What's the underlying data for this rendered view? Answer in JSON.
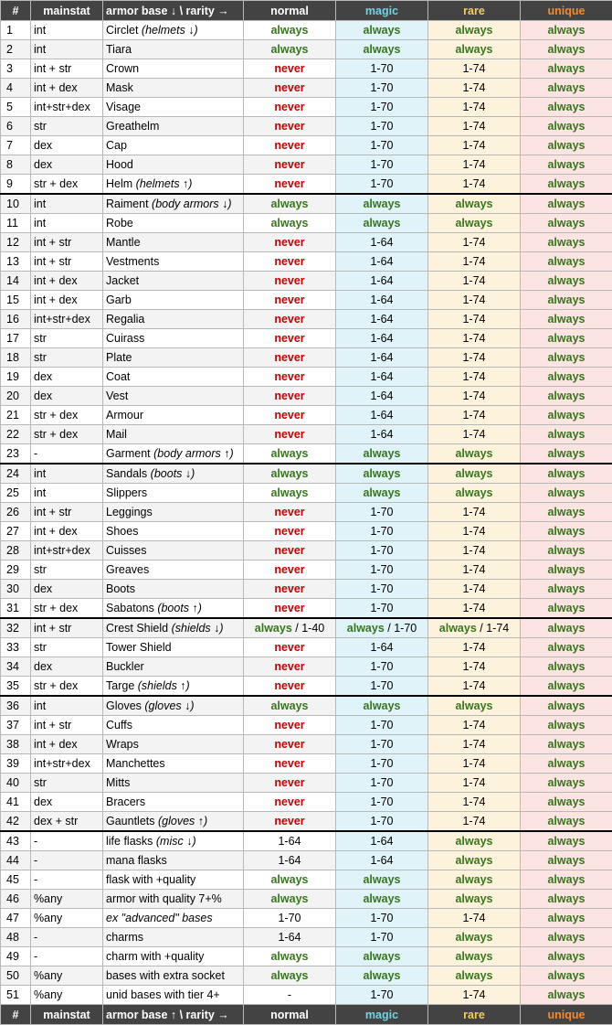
{
  "header": {
    "num": "#",
    "mainstat": "mainstat",
    "base": "armor base ↓ \\ rarity →",
    "normal": "normal",
    "magic": "magic",
    "rare": "rare",
    "unique": "unique"
  },
  "footer": {
    "num": "#",
    "mainstat": "mainstat",
    "base": "armor base ↑ \\ rarity →",
    "normal": "normal",
    "magic": "magic",
    "rare": "rare",
    "unique": "unique"
  },
  "colors": {
    "always": "#38761d",
    "never": "#cc0000",
    "header_bg": "#434343",
    "magic_header": "#6fd4e6",
    "rare_header": "#f2cc5e",
    "unique_header": "#f48a2c",
    "magic_cell": "#dff3f8",
    "rare_cell": "#fdf3dc",
    "unique_cell": "#fbe4e1"
  },
  "rows": [
    {
      "num": "1",
      "stat": "int",
      "base": "Circlet",
      "note": "(helmets ↓)",
      "normal": "always",
      "magic": "always",
      "rare": "always",
      "unique": "always"
    },
    {
      "num": "2",
      "stat": "int",
      "base": "Tiara",
      "note": "",
      "normal": "always",
      "magic": "always",
      "rare": "always",
      "unique": "always"
    },
    {
      "num": "3",
      "stat": "int + str",
      "base": "Crown",
      "note": "",
      "normal": "never",
      "magic": "1-70",
      "rare": "1-74",
      "unique": "always"
    },
    {
      "num": "4",
      "stat": "int + dex",
      "base": "Mask",
      "note": "",
      "normal": "never",
      "magic": "1-70",
      "rare": "1-74",
      "unique": "always"
    },
    {
      "num": "5",
      "stat": "int+str+dex",
      "base": "Visage",
      "note": "",
      "normal": "never",
      "magic": "1-70",
      "rare": "1-74",
      "unique": "always"
    },
    {
      "num": "6",
      "stat": "str",
      "base": "Greathelm",
      "note": "",
      "normal": "never",
      "magic": "1-70",
      "rare": "1-74",
      "unique": "always"
    },
    {
      "num": "7",
      "stat": "dex",
      "base": "Cap",
      "note": "",
      "normal": "never",
      "magic": "1-70",
      "rare": "1-74",
      "unique": "always"
    },
    {
      "num": "8",
      "stat": "dex",
      "base": "Hood",
      "note": "",
      "normal": "never",
      "magic": "1-70",
      "rare": "1-74",
      "unique": "always"
    },
    {
      "num": "9",
      "stat": "str + dex",
      "base": "Helm",
      "note": "(helmets ↑)",
      "normal": "never",
      "magic": "1-70",
      "rare": "1-74",
      "unique": "always"
    },
    {
      "num": "10",
      "stat": "int",
      "base": "Raiment",
      "note": "(body armors ↓)",
      "normal": "always",
      "magic": "always",
      "rare": "always",
      "unique": "always",
      "group_start": true
    },
    {
      "num": "11",
      "stat": "int",
      "base": "Robe",
      "note": "",
      "normal": "always",
      "magic": "always",
      "rare": "always",
      "unique": "always"
    },
    {
      "num": "12",
      "stat": "int + str",
      "base": "Mantle",
      "note": "",
      "normal": "never",
      "magic": "1-64",
      "rare": "1-74",
      "unique": "always"
    },
    {
      "num": "13",
      "stat": "int + str",
      "base": "Vestments",
      "note": "",
      "normal": "never",
      "magic": "1-64",
      "rare": "1-74",
      "unique": "always"
    },
    {
      "num": "14",
      "stat": "int + dex",
      "base": "Jacket",
      "note": "",
      "normal": "never",
      "magic": "1-64",
      "rare": "1-74",
      "unique": "always"
    },
    {
      "num": "15",
      "stat": "int + dex",
      "base": "Garb",
      "note": "",
      "normal": "never",
      "magic": "1-64",
      "rare": "1-74",
      "unique": "always"
    },
    {
      "num": "16",
      "stat": "int+str+dex",
      "base": "Regalia",
      "note": "",
      "normal": "never",
      "magic": "1-64",
      "rare": "1-74",
      "unique": "always"
    },
    {
      "num": "17",
      "stat": "str",
      "base": "Cuirass",
      "note": "",
      "normal": "never",
      "magic": "1-64",
      "rare": "1-74",
      "unique": "always"
    },
    {
      "num": "18",
      "stat": "str",
      "base": "Plate",
      "note": "",
      "normal": "never",
      "magic": "1-64",
      "rare": "1-74",
      "unique": "always"
    },
    {
      "num": "19",
      "stat": "dex",
      "base": "Coat",
      "note": "",
      "normal": "never",
      "magic": "1-64",
      "rare": "1-74",
      "unique": "always"
    },
    {
      "num": "20",
      "stat": "dex",
      "base": "Vest",
      "note": "",
      "normal": "never",
      "magic": "1-64",
      "rare": "1-74",
      "unique": "always"
    },
    {
      "num": "21",
      "stat": "str + dex",
      "base": "Armour",
      "note": "",
      "normal": "never",
      "magic": "1-64",
      "rare": "1-74",
      "unique": "always"
    },
    {
      "num": "22",
      "stat": "str + dex",
      "base": "Mail",
      "note": "",
      "normal": "never",
      "magic": "1-64",
      "rare": "1-74",
      "unique": "always"
    },
    {
      "num": "23",
      "stat": "-",
      "base": "Garment",
      "note": "(body armors ↑)",
      "normal": "always",
      "magic": "always",
      "rare": "always",
      "unique": "always"
    },
    {
      "num": "24",
      "stat": "int",
      "base": "Sandals",
      "note": "(boots ↓)",
      "normal": "always",
      "magic": "always",
      "rare": "always",
      "unique": "always",
      "group_start": true
    },
    {
      "num": "25",
      "stat": "int",
      "base": "Slippers",
      "note": "",
      "normal": "always",
      "magic": "always",
      "rare": "always",
      "unique": "always"
    },
    {
      "num": "26",
      "stat": "int + str",
      "base": "Leggings",
      "note": "",
      "normal": "never",
      "magic": "1-70",
      "rare": "1-74",
      "unique": "always"
    },
    {
      "num": "27",
      "stat": "int + dex",
      "base": "Shoes",
      "note": "",
      "normal": "never",
      "magic": "1-70",
      "rare": "1-74",
      "unique": "always"
    },
    {
      "num": "28",
      "stat": "int+str+dex",
      "base": "Cuisses",
      "note": "",
      "normal": "never",
      "magic": "1-70",
      "rare": "1-74",
      "unique": "always"
    },
    {
      "num": "29",
      "stat": "str",
      "base": "Greaves",
      "note": "",
      "normal": "never",
      "magic": "1-70",
      "rare": "1-74",
      "unique": "always"
    },
    {
      "num": "30",
      "stat": "dex",
      "base": "Boots",
      "note": "",
      "normal": "never",
      "magic": "1-70",
      "rare": "1-74",
      "unique": "always"
    },
    {
      "num": "31",
      "stat": "str + dex",
      "base": "Sabatons",
      "note": "(boots ↑)",
      "normal": "never",
      "magic": "1-70",
      "rare": "1-74",
      "unique": "always"
    },
    {
      "num": "32",
      "stat": "int + str",
      "base": "Crest Shield",
      "note": "(shields ↓)",
      "normal": "always",
      "normal_extra": " / 1-40",
      "magic": "always",
      "magic_extra": " / 1-70",
      "rare": "always",
      "rare_extra": " / 1-74",
      "unique": "always",
      "group_start": true
    },
    {
      "num": "33",
      "stat": "str",
      "base": "Tower Shield",
      "note": "",
      "normal": "never",
      "magic": "1-64",
      "rare": "1-74",
      "unique": "always"
    },
    {
      "num": "34",
      "stat": "dex",
      "base": "Buckler",
      "note": "",
      "normal": "never",
      "magic": "1-70",
      "rare": "1-74",
      "unique": "always"
    },
    {
      "num": "35",
      "stat": "str + dex",
      "base": "Targe",
      "note": "(shields ↑)",
      "normal": "never",
      "magic": "1-70",
      "rare": "1-74",
      "unique": "always"
    },
    {
      "num": "36",
      "stat": "int",
      "base": "Gloves",
      "note": "(gloves ↓)",
      "normal": "always",
      "magic": "always",
      "rare": "always",
      "unique": "always",
      "group_start": true
    },
    {
      "num": "37",
      "stat": "int + str",
      "base": "Cuffs",
      "note": "",
      "normal": "never",
      "magic": "1-70",
      "rare": "1-74",
      "unique": "always"
    },
    {
      "num": "38",
      "stat": "int + dex",
      "base": "Wraps",
      "note": "",
      "normal": "never",
      "magic": "1-70",
      "rare": "1-74",
      "unique": "always"
    },
    {
      "num": "39",
      "stat": "int+str+dex",
      "base": "Manchettes",
      "note": "",
      "normal": "never",
      "magic": "1-70",
      "rare": "1-74",
      "unique": "always"
    },
    {
      "num": "40",
      "stat": "str",
      "base": "Mitts",
      "note": "",
      "normal": "never",
      "magic": "1-70",
      "rare": "1-74",
      "unique": "always"
    },
    {
      "num": "41",
      "stat": "dex",
      "base": "Bracers",
      "note": "",
      "normal": "never",
      "magic": "1-70",
      "rare": "1-74",
      "unique": "always"
    },
    {
      "num": "42",
      "stat": "dex + str",
      "base": "Gauntlets",
      "note": "(gloves ↑)",
      "normal": "never",
      "magic": "1-70",
      "rare": "1-74",
      "unique": "always"
    },
    {
      "num": "43",
      "stat": "-",
      "base": "life flasks",
      "note": "(misc ↓)",
      "normal": "1-64",
      "magic": "1-64",
      "rare": "always",
      "unique": "always",
      "group_start": true
    },
    {
      "num": "44",
      "stat": "-",
      "base": "mana flasks",
      "note": "",
      "normal": "1-64",
      "magic": "1-64",
      "rare": "always",
      "unique": "always"
    },
    {
      "num": "45",
      "stat": "-",
      "base": "flask with +quality",
      "note": "",
      "normal": "always",
      "magic": "always",
      "rare": "always",
      "unique": "always"
    },
    {
      "num": "46",
      "stat": "%any",
      "base": "armor with quality 7+%",
      "note": "",
      "normal": "always",
      "magic": "always",
      "rare": "always",
      "unique": "always"
    },
    {
      "num": "47",
      "stat": "%any",
      "base": "",
      "note": "ex \"advanced\" bases",
      "normal": "1-70",
      "magic": "1-70",
      "rare": "1-74",
      "unique": "always"
    },
    {
      "num": "48",
      "stat": "-",
      "base": "charms",
      "note": "",
      "normal": "1-64",
      "magic": "1-70",
      "rare": "always",
      "unique": "always"
    },
    {
      "num": "49",
      "stat": "-",
      "base": "charm with +quality",
      "note": "",
      "normal": "always",
      "magic": "always",
      "rare": "always",
      "unique": "always"
    },
    {
      "num": "50",
      "stat": "%any",
      "base": "bases with extra socket",
      "note": "",
      "normal": "always",
      "magic": "always",
      "rare": "always",
      "unique": "always"
    },
    {
      "num": "51",
      "stat": "%any",
      "base": "unid bases with tier 4+",
      "note": "",
      "normal": "-",
      "magic": "1-70",
      "rare": "1-74",
      "unique": "always"
    }
  ]
}
